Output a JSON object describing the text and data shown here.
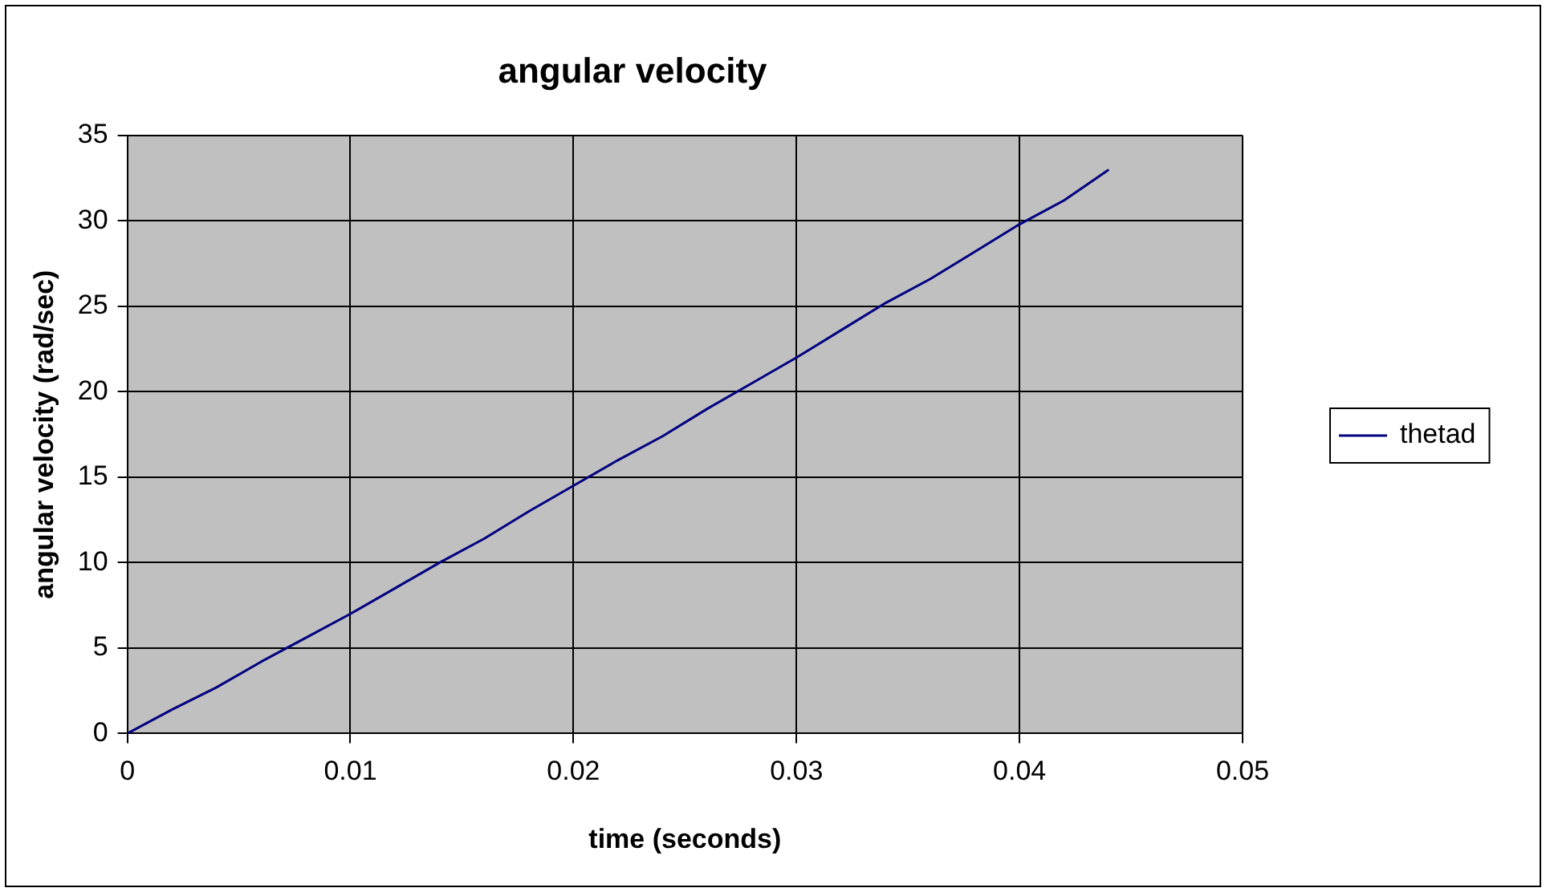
{
  "chart_data": {
    "type": "line",
    "title": "angular velocity",
    "xlabel": "time (seconds)",
    "ylabel": "angular velocity (rad/sec)",
    "series": [
      {
        "name": "thetad",
        "color": "#000080",
        "x": [
          0,
          0.002,
          0.004,
          0.006,
          0.008,
          0.01,
          0.012,
          0.014,
          0.016,
          0.018,
          0.02,
          0.022,
          0.024,
          0.026,
          0.028,
          0.03,
          0.032,
          0.034,
          0.036,
          0.038,
          0.04,
          0.042,
          0.044
        ],
        "values": [
          0,
          1.4,
          2.7,
          4.2,
          5.6,
          7.0,
          8.5,
          10.0,
          11.4,
          13.0,
          14.5,
          16.0,
          17.4,
          19.0,
          20.5,
          22.0,
          23.6,
          25.2,
          26.6,
          28.2,
          29.8,
          31.2,
          33.0
        ]
      }
    ],
    "xlim": [
      0,
      0.05
    ],
    "xticks": [
      0,
      0.01,
      0.02,
      0.03,
      0.04,
      0.05
    ],
    "ylim": [
      0,
      35
    ],
    "yticks": [
      0,
      5,
      10,
      15,
      20,
      25,
      30,
      35
    ],
    "grid": true,
    "legend": "right",
    "marker": "none",
    "line_style": "solid"
  }
}
